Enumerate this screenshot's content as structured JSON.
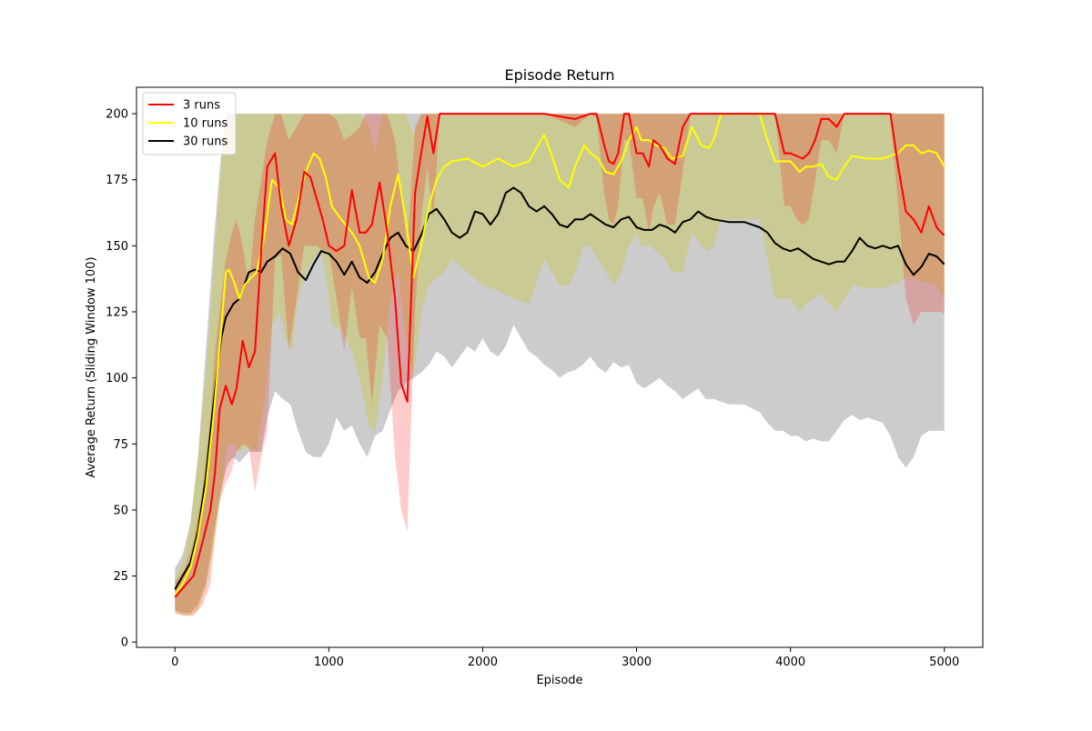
{
  "chart_data": {
    "type": "line",
    "title": "Episode Return",
    "xlabel": "Episode",
    "ylabel": "Average Return (Sliding Window 100)",
    "xlim": [
      -250,
      5250
    ],
    "ylim": [
      -2,
      210
    ],
    "xticks": [
      0,
      1000,
      2000,
      3000,
      4000,
      5000
    ],
    "yticks": [
      0,
      25,
      50,
      75,
      100,
      125,
      150,
      175,
      200
    ],
    "legend_position": "upper-left",
    "grid": false,
    "series": [
      {
        "name": "3 runs",
        "color": "#ff0000",
        "band_color": "rgba(255,0,0,0.20)",
        "x": [
          0,
          60,
          120,
          180,
          230,
          260,
          290,
          330,
          370,
          400,
          440,
          480,
          520,
          560,
          600,
          650,
          690,
          740,
          790,
          840,
          880,
          920,
          960,
          1000,
          1050,
          1100,
          1150,
          1200,
          1240,
          1280,
          1330,
          1380,
          1430,
          1470,
          1510,
          1560,
          1600,
          1640,
          1680,
          1720,
          1780,
          1850,
          1900,
          2000,
          2200,
          2400,
          2600,
          2700,
          2740,
          2790,
          2820,
          2850,
          2880,
          2920,
          2950,
          3000,
          3040,
          3080,
          3110,
          3150,
          3200,
          3250,
          3300,
          3350,
          3400,
          3450,
          3500,
          3600,
          3800,
          3900,
          3960,
          4000,
          4040,
          4080,
          4120,
          4160,
          4200,
          4250,
          4300,
          4350,
          4400,
          4450,
          4500,
          4600,
          4650,
          4700,
          4750,
          4800,
          4850,
          4900,
          4950,
          4980,
          5000
        ],
        "y": [
          17,
          21,
          25,
          38,
          50,
          64,
          88,
          97,
          90,
          96,
          114,
          104,
          110,
          148,
          180,
          185,
          165,
          150,
          160,
          178,
          176,
          168,
          160,
          150,
          148,
          150,
          171,
          155,
          155,
          158,
          174,
          155,
          130,
          98,
          91,
          170,
          185,
          199,
          185,
          200,
          200,
          200,
          200,
          200,
          200,
          200,
          198,
          200,
          200,
          188,
          182,
          181,
          185,
          200,
          200,
          185,
          185,
          180,
          190,
          188,
          183,
          181,
          195,
          200,
          200,
          200,
          200,
          200,
          200,
          200,
          185,
          185,
          184,
          183,
          185,
          190,
          198,
          198,
          195,
          200,
          200,
          200,
          200,
          200,
          200,
          180,
          163,
          160,
          155,
          165,
          157,
          155,
          154
        ],
        "upper": [
          23,
          27,
          38,
          58,
          85,
          110,
          125,
          145,
          155,
          160,
          150,
          135,
          160,
          175,
          190,
          200,
          200,
          190,
          195,
          200,
          200,
          200,
          200,
          200,
          198,
          190,
          192,
          195,
          200,
          200,
          200,
          200,
          190,
          170,
          150,
          195,
          200,
          200,
          200,
          200,
          200,
          200,
          200,
          200,
          200,
          200,
          200,
          200,
          200,
          200,
          200,
          200,
          200,
          200,
          200,
          200,
          200,
          200,
          200,
          200,
          200,
          200,
          200,
          200,
          200,
          200,
          200,
          200,
          200,
          200,
          200,
          200,
          200,
          200,
          200,
          200,
          200,
          200,
          200,
          200,
          200,
          200,
          200,
          200,
          200,
          200,
          200,
          200,
          200,
          200,
          200,
          200,
          200
        ],
        "lower": [
          11,
          10,
          10,
          14,
          22,
          40,
          54,
          60,
          65,
          72,
          75,
          74,
          57,
          70,
          80,
          145,
          147,
          110,
          130,
          150,
          150,
          150,
          148,
          148,
          130,
          110,
          135,
          115,
          115,
          90,
          120,
          115,
          70,
          50,
          42,
          125,
          160,
          180,
          160,
          200,
          200,
          200,
          200,
          200,
          200,
          200,
          195,
          200,
          198,
          170,
          160,
          158,
          165,
          190,
          190,
          168,
          168,
          155,
          165,
          170,
          158,
          158,
          178,
          200,
          200,
          200,
          200,
          200,
          200,
          200,
          165,
          165,
          160,
          158,
          160,
          175,
          190,
          190,
          185,
          200,
          200,
          200,
          200,
          200,
          200,
          165,
          130,
          120,
          125,
          125,
          125,
          125,
          124
        ]
      },
      {
        "name": "10 runs",
        "color": "#ffff00",
        "band_color": "rgba(200,200,20,0.30)",
        "x": [
          0,
          50,
          100,
          150,
          200,
          250,
          300,
          330,
          350,
          380,
          420,
          450,
          480,
          530,
          580,
          630,
          680,
          720,
          760,
          800,
          850,
          900,
          940,
          980,
          1020,
          1080,
          1150,
          1200,
          1260,
          1300,
          1350,
          1400,
          1450,
          1500,
          1550,
          1600,
          1650,
          1700,
          1750,
          1800,
          1900,
          2000,
          2100,
          2200,
          2300,
          2400,
          2450,
          2500,
          2560,
          2600,
          2660,
          2700,
          2750,
          2800,
          2850,
          2900,
          2950,
          3000,
          3030,
          3080,
          3130,
          3180,
          3230,
          3300,
          3360,
          3420,
          3470,
          3500,
          3550,
          3600,
          3700,
          3800,
          3850,
          3900,
          3950,
          4000,
          4060,
          4100,
          4150,
          4200,
          4250,
          4300,
          4350,
          4400,
          4500,
          4600,
          4700,
          4750,
          4800,
          4850,
          4900,
          4950,
          5000
        ],
        "y": [
          18,
          22,
          28,
          40,
          58,
          85,
          118,
          140,
          141,
          137,
          130,
          135,
          137,
          140,
          153,
          175,
          172,
          160,
          158,
          167,
          178,
          185,
          183,
          176,
          165,
          160,
          155,
          150,
          138,
          136,
          145,
          165,
          177,
          160,
          138,
          150,
          165,
          175,
          180,
          182,
          183,
          180,
          183,
          180,
          182,
          192,
          184,
          175,
          172,
          180,
          188,
          185,
          183,
          178,
          177,
          182,
          190,
          195,
          190,
          190,
          188,
          187,
          183,
          184,
          195,
          188,
          187,
          190,
          200,
          200,
          200,
          200,
          190,
          182,
          182,
          182,
          178,
          180,
          180,
          181,
          176,
          175,
          180,
          184,
          183,
          183,
          185,
          188,
          188,
          185,
          186,
          185,
          180
        ],
        "upper": [
          24,
          30,
          45,
          70,
          100,
          140,
          180,
          200,
          200,
          200,
          200,
          200,
          200,
          200,
          200,
          200,
          200,
          200,
          200,
          200,
          200,
          200,
          200,
          200,
          200,
          200,
          200,
          200,
          196,
          185,
          200,
          200,
          200,
          200,
          192,
          200,
          200,
          200,
          200,
          200,
          200,
          200,
          200,
          200,
          200,
          200,
          200,
          200,
          200,
          200,
          200,
          200,
          200,
          200,
          200,
          200,
          200,
          200,
          200,
          200,
          200,
          200,
          200,
          200,
          200,
          200,
          200,
          200,
          200,
          200,
          200,
          200,
          200,
          200,
          200,
          200,
          200,
          200,
          200,
          200,
          200,
          200,
          200,
          200,
          200,
          200,
          200,
          200,
          200,
          200,
          200,
          200,
          200
        ],
        "lower": [
          11,
          10,
          10,
          12,
          20,
          35,
          55,
          70,
          75,
          75,
          72,
          74,
          73,
          73,
          90,
          120,
          125,
          115,
          110,
          130,
          140,
          145,
          148,
          140,
          120,
          118,
          110,
          100,
          82,
          80,
          100,
          130,
          140,
          115,
          100,
          125,
          135,
          138,
          140,
          145,
          140,
          135,
          133,
          130,
          128,
          145,
          140,
          135,
          135,
          140,
          150,
          150,
          145,
          140,
          135,
          140,
          150,
          155,
          150,
          150,
          148,
          145,
          140,
          140,
          155,
          150,
          148,
          150,
          160,
          160,
          160,
          160,
          145,
          130,
          130,
          130,
          125,
          128,
          130,
          132,
          128,
          125,
          130,
          135,
          134,
          134,
          136,
          138,
          138,
          136,
          136,
          135,
          130
        ]
      },
      {
        "name": "30 runs",
        "color": "#000000",
        "band_color": "rgba(128,128,128,0.40)",
        "x": [
          0,
          50,
          100,
          150,
          200,
          250,
          300,
          330,
          350,
          380,
          420,
          450,
          480,
          520,
          560,
          600,
          650,
          700,
          750,
          800,
          850,
          900,
          950,
          1000,
          1050,
          1100,
          1150,
          1200,
          1250,
          1300,
          1350,
          1400,
          1450,
          1500,
          1550,
          1600,
          1650,
          1700,
          1750,
          1800,
          1850,
          1900,
          1950,
          2000,
          2050,
          2100,
          2150,
          2200,
          2250,
          2300,
          2350,
          2400,
          2450,
          2500,
          2550,
          2600,
          2650,
          2700,
          2750,
          2800,
          2850,
          2900,
          2950,
          3000,
          3050,
          3100,
          3150,
          3200,
          3250,
          3300,
          3350,
          3400,
          3450,
          3500,
          3600,
          3700,
          3800,
          3850,
          3900,
          3950,
          4000,
          4050,
          4100,
          4150,
          4200,
          4250,
          4300,
          4350,
          4400,
          4450,
          4500,
          4550,
          4600,
          4650,
          4700,
          4750,
          4800,
          4850,
          4900,
          4950,
          5000
        ],
        "y": [
          20,
          25,
          30,
          42,
          62,
          90,
          115,
          123,
          125,
          128,
          130,
          135,
          140,
          141,
          140,
          144,
          146,
          149,
          147,
          140,
          137,
          143,
          148,
          147,
          144,
          139,
          144,
          138,
          136,
          140,
          147,
          153,
          155,
          150,
          148,
          154,
          162,
          164,
          160,
          155,
          153,
          155,
          163,
          162,
          158,
          162,
          170,
          172,
          170,
          165,
          163,
          165,
          162,
          158,
          157,
          160,
          160,
          162,
          160,
          158,
          157,
          160,
          161,
          157,
          156,
          156,
          158,
          157,
          155,
          159,
          160,
          163,
          161,
          160,
          159,
          159,
          157,
          155,
          151,
          149,
          148,
          149,
          147,
          145,
          144,
          143,
          144,
          144,
          148,
          153,
          150,
          149,
          150,
          149,
          150,
          143,
          139,
          142,
          147,
          146,
          143
        ],
        "upper": [
          28,
          33,
          45,
          70,
          110,
          150,
          185,
          200,
          200,
          200,
          200,
          200,
          200,
          200,
          200,
          200,
          200,
          200,
          200,
          200,
          200,
          200,
          200,
          200,
          200,
          200,
          200,
          200,
          200,
          200,
          200,
          200,
          200,
          200,
          200,
          200,
          200,
          200,
          200,
          200,
          200,
          200,
          200,
          200,
          200,
          200,
          200,
          200,
          200,
          200,
          200,
          200,
          200,
          200,
          200,
          200,
          200,
          200,
          200,
          200,
          200,
          200,
          200,
          200,
          200,
          200,
          200,
          200,
          200,
          200,
          200,
          200,
          200,
          200,
          200,
          200,
          200,
          200,
          200,
          200,
          200,
          200,
          200,
          200,
          200,
          200,
          200,
          200,
          200,
          200,
          200,
          200,
          200,
          200,
          200,
          200,
          200,
          200,
          200,
          200,
          200
        ],
        "lower": [
          12,
          11,
          11,
          14,
          22,
          40,
          58,
          65,
          68,
          70,
          68,
          70,
          72,
          72,
          72,
          85,
          95,
          92,
          90,
          80,
          72,
          70,
          70,
          75,
          85,
          80,
          82,
          75,
          70,
          78,
          80,
          88,
          95,
          98,
          100,
          102,
          105,
          110,
          108,
          104,
          108,
          112,
          110,
          115,
          110,
          108,
          112,
          120,
          115,
          110,
          108,
          105,
          103,
          100,
          102,
          103,
          105,
          108,
          104,
          102,
          106,
          104,
          105,
          98,
          96,
          98,
          100,
          97,
          95,
          92,
          94,
          96,
          92,
          92,
          90,
          90,
          87,
          83,
          80,
          80,
          78,
          78,
          76,
          77,
          76,
          76,
          80,
          84,
          86,
          84,
          85,
          84,
          83,
          78,
          70,
          66,
          70,
          78,
          80,
          80,
          80
        ]
      }
    ]
  }
}
